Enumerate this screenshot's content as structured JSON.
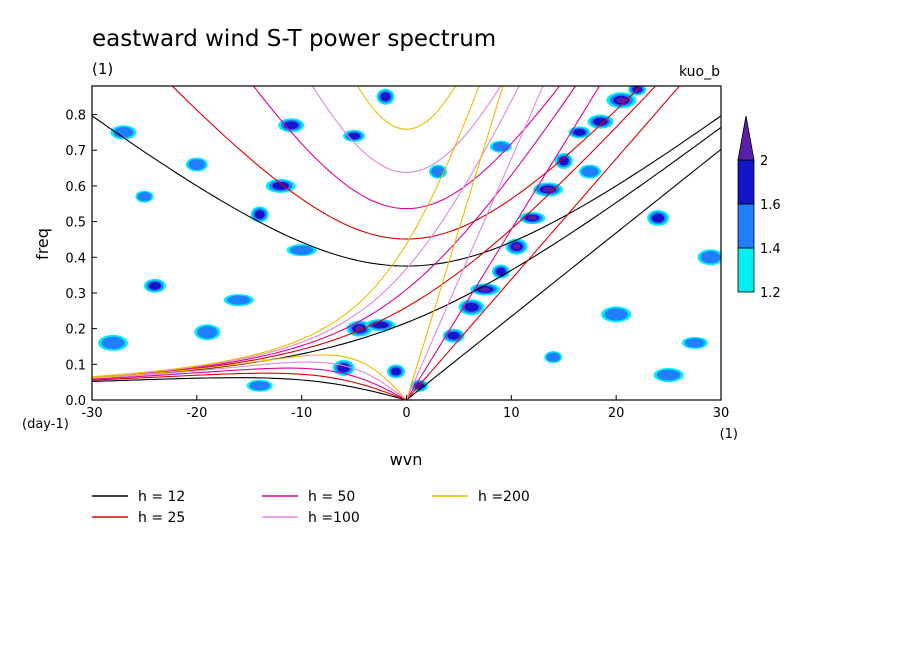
{
  "chart_data": {
    "type": "heatmap",
    "title": "eastward wind S-T power spectrum",
    "subtitle": "(1)",
    "annotation_right": "kuo_b",
    "xlabel": "wvn",
    "ylabel": "freq",
    "x_unit": "(1)",
    "y_unit": "(day-1)",
    "xlim": [
      -30,
      30
    ],
    "ylim": [
      0,
      0.88
    ],
    "xticks": [
      "-30",
      "-20",
      "-10",
      "0",
      "10",
      "20",
      "30"
    ],
    "yticks": [
      "0.0",
      "0.1",
      "0.2",
      "0.3",
      "0.4",
      "0.5",
      "0.6",
      "0.7",
      "0.8"
    ],
    "colorbar": {
      "levels": [
        "1.2",
        "1.4",
        "1.6",
        "2"
      ],
      "colors": [
        "#00f0f0",
        "#1e7fff",
        "#1414c8",
        "#5a1eaa"
      ]
    },
    "contour_blobs": [
      {
        "x": 1.2,
        "y": 0.04,
        "level": 2
      },
      {
        "x": 4.5,
        "y": 0.18,
        "level": 2
      },
      {
        "x": 6.2,
        "y": 0.26,
        "level": 2
      },
      {
        "x": 7.5,
        "y": 0.31,
        "level": 3
      },
      {
        "x": 9.0,
        "y": 0.36,
        "level": 2
      },
      {
        "x": 10.5,
        "y": 0.43,
        "level": 3
      },
      {
        "x": 12.0,
        "y": 0.51,
        "level": 3
      },
      {
        "x": 13.5,
        "y": 0.59,
        "level": 3
      },
      {
        "x": 15.0,
        "y": 0.67,
        "level": 2
      },
      {
        "x": 16.5,
        "y": 0.75,
        "level": 2
      },
      {
        "x": 18.5,
        "y": 0.78,
        "level": 2
      },
      {
        "x": 20.5,
        "y": 0.84,
        "level": 3
      },
      {
        "x": 22.0,
        "y": 0.87,
        "level": 2
      },
      {
        "x": 17.5,
        "y": 0.64,
        "level": 1
      },
      {
        "x": -4.5,
        "y": 0.2,
        "level": 3
      },
      {
        "x": -2.5,
        "y": 0.21,
        "level": 2
      },
      {
        "x": -1.0,
        "y": 0.08,
        "level": 2
      },
      {
        "x": -6.0,
        "y": 0.09,
        "level": 2
      },
      {
        "x": -14.0,
        "y": 0.04,
        "level": 1
      },
      {
        "x": -12.0,
        "y": 0.6,
        "level": 2
      },
      {
        "x": -14.0,
        "y": 0.52,
        "level": 2
      },
      {
        "x": -5.0,
        "y": 0.74,
        "level": 2
      },
      {
        "x": -11.0,
        "y": 0.77,
        "level": 2
      },
      {
        "x": -28.0,
        "y": 0.16,
        "level": 1
      },
      {
        "x": -25.0,
        "y": 0.57,
        "level": 1
      },
      {
        "x": -24.0,
        "y": 0.32,
        "level": 2
      },
      {
        "x": -19.0,
        "y": 0.19,
        "level": 1
      },
      {
        "x": -10.0,
        "y": 0.42,
        "level": 1
      },
      {
        "x": 3.0,
        "y": 0.64,
        "level": 1
      },
      {
        "x": 24.0,
        "y": 0.51,
        "level": 2
      },
      {
        "x": 27.5,
        "y": 0.16,
        "level": 1
      },
      {
        "x": 25.0,
        "y": 0.07,
        "level": 1
      },
      {
        "x": -2.0,
        "y": 0.85,
        "level": 2
      },
      {
        "x": 9.0,
        "y": 0.71,
        "level": 1
      },
      {
        "x": -27.0,
        "y": 0.75,
        "level": 1
      },
      {
        "x": 20.0,
        "y": 0.24,
        "level": 1
      },
      {
        "x": 14.0,
        "y": 0.12,
        "level": 1
      },
      {
        "x": -20.0,
        "y": 0.66,
        "level": 1
      },
      {
        "x": 29.0,
        "y": 0.4,
        "level": 1
      },
      {
        "x": -16.0,
        "y": 0.28,
        "level": 1
      }
    ],
    "series": [
      {
        "name": "h = 12",
        "h": 12,
        "color": "#000000"
      },
      {
        "name": "h = 25",
        "h": 25,
        "color": "#dd0000"
      },
      {
        "name": "h = 50",
        "h": 50,
        "color": "#dd0099"
      },
      {
        "name": "h =100",
        "h": 100,
        "color": "#dd88dd"
      },
      {
        "name": "h =200",
        "h": 200,
        "color": "#eebb00"
      }
    ],
    "legend_placement": "bottom"
  }
}
